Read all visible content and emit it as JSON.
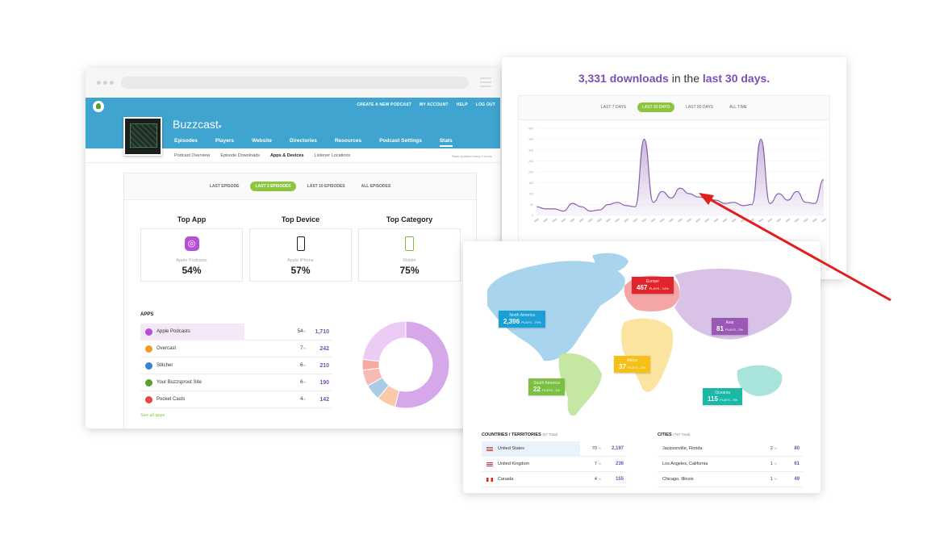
{
  "browser": {
    "top_links": [
      "CREATE A NEW PODCAST",
      "MY ACCOUNT",
      "HELP",
      "LOG OUT"
    ],
    "show_name": "Buzzcast",
    "nav_tabs": [
      "Episodes",
      "Players",
      "Website",
      "Directories",
      "Resources",
      "Podcast Settings",
      "Stats"
    ],
    "sub_tabs": [
      "Podcast Overview",
      "Episode Downloads",
      "Apps & Devices",
      "Listener Locations"
    ],
    "updated_note": "Stats updated every 4 hours",
    "range_pills": [
      "LAST EPISODE",
      "LAST 3 EPISODES",
      "LAST 10 EPISODES",
      "ALL EPISODES"
    ],
    "active_range": "LAST 3 EPISODES",
    "tops": [
      {
        "title": "Top App",
        "label": "Apple Podcasts",
        "pct": "54%",
        "icon": "podcast-icon"
      },
      {
        "title": "Top Device",
        "label": "Apple iPhone",
        "pct": "57%",
        "icon": "iphone-icon"
      },
      {
        "title": "Top Category",
        "label": "Mobile",
        "pct": "75%",
        "icon": "mobile-icon"
      }
    ],
    "apps_heading": "APPS",
    "apps": [
      {
        "name": "Apple Podcasts",
        "pct": "54",
        "count": "1,710",
        "color": "#b54fd8"
      },
      {
        "name": "Overcast",
        "pct": "7",
        "count": "242",
        "color": "#f59a23"
      },
      {
        "name": "Stitcher",
        "pct": "6",
        "count": "210",
        "color": "#3b7dd8"
      },
      {
        "name": "Your Buzzsprout Site",
        "pct": "6",
        "count": "190",
        "color": "#5a9e2f"
      },
      {
        "name": "Pocket Casts",
        "pct": "4",
        "count": "142",
        "color": "#e8483f"
      }
    ],
    "see_all": "See all apps",
    "donut": [
      54,
      7,
      6,
      6,
      4,
      23
    ],
    "donut_colors": [
      "#d6a8ea",
      "#fac9a8",
      "#a9cbe4",
      "#f7b9b4",
      "#f8a9a0",
      "#ecccf5"
    ]
  },
  "chart": {
    "count": "3,331 downloads",
    "mid": " in the ",
    "period": "last 30 days.",
    "pills": [
      "LAST 7 DAYS",
      "LAST 30 DAYS",
      "LAST 90 DAYS",
      "ALL TIME"
    ],
    "active_pill": "LAST 30 DAYS"
  },
  "chart_data": {
    "type": "area",
    "title": "",
    "xlabel": "",
    "ylabel": "",
    "y_ticks": [
      0,
      50,
      100,
      150,
      200,
      250,
      300,
      350,
      400
    ],
    "ylim": [
      0,
      400
    ],
    "values": [
      40,
      30,
      30,
      20,
      55,
      40,
      20,
      25,
      50,
      60,
      45,
      40,
      350,
      60,
      110,
      80,
      125,
      100,
      85,
      80,
      70,
      55,
      60,
      45,
      50,
      350,
      55,
      100,
      70,
      110,
      60,
      55,
      165
    ],
    "grid": true,
    "color": "#8b5fb0"
  },
  "map": {
    "regions": [
      {
        "name": "North America",
        "value": "2,396",
        "unit": "PLAYS",
        "pct": "70%",
        "color": "#1a9fd6"
      },
      {
        "name": "Europe",
        "value": "467",
        "unit": "PLAYS",
        "pct": "14%",
        "color": "#e0262c"
      },
      {
        "name": "Asia",
        "value": "81",
        "unit": "PLAYS",
        "pct": "2%",
        "color": "#9b59b6"
      },
      {
        "name": "Africa",
        "value": "37",
        "unit": "PLAYS",
        "pct": "1%",
        "color": "#f5c018"
      },
      {
        "name": "South America",
        "value": "22",
        "unit": "PLAYS",
        "pct": "1%",
        "color": "#7bc043"
      },
      {
        "name": "Oceania",
        "value": "115",
        "unit": "PLAYS",
        "pct": "3%",
        "color": "#1bb8a6"
      }
    ],
    "countries_heading": "COUNTRIES / TERRITORIES",
    "countries_total": "(57 Total)",
    "countries": [
      {
        "name": "United States",
        "pct": "70",
        "count": "2,197"
      },
      {
        "name": "United Kingdom",
        "pct": "7",
        "count": "236"
      },
      {
        "name": "Canada",
        "pct": "4",
        "count": "155"
      }
    ],
    "cities_heading": "CITIES",
    "cities_total": "(797 Total)",
    "cities": [
      {
        "name": "Jacksonville, Florida",
        "pct": "2",
        "count": "80"
      },
      {
        "name": "Los Angeles, California",
        "pct": "1",
        "count": "61"
      },
      {
        "name": "Chicago, Illinois",
        "pct": "1",
        "count": "49"
      }
    ]
  }
}
